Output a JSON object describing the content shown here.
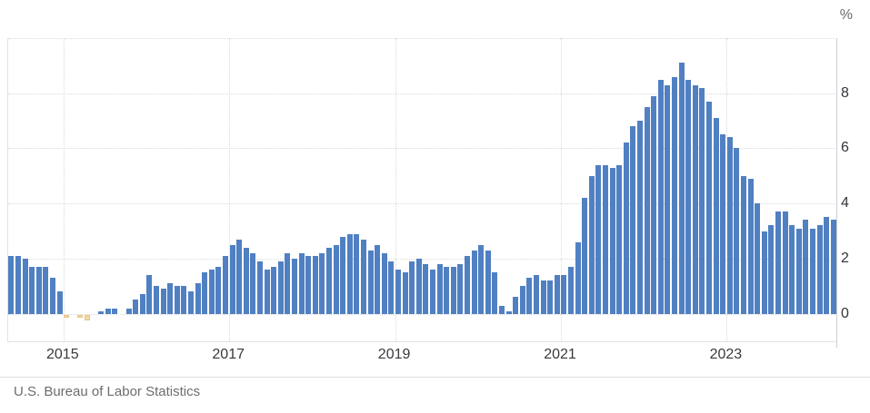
{
  "footer": {
    "source": "U.S. Bureau of Labor Statistics"
  },
  "chart_data": {
    "type": "bar",
    "title": "",
    "unit_label": "%",
    "x_start": "2014-05",
    "x_frequency": "monthly",
    "values": [
      2.1,
      2.1,
      2.0,
      1.7,
      1.7,
      1.7,
      1.3,
      0.8,
      -0.1,
      0.0,
      -0.1,
      -0.2,
      0.0,
      0.1,
      0.2,
      0.2,
      0.0,
      0.2,
      0.5,
      0.7,
      1.4,
      1.0,
      0.9,
      1.1,
      1.0,
      1.0,
      0.8,
      1.1,
      1.5,
      1.6,
      1.7,
      2.1,
      2.5,
      2.7,
      2.4,
      2.2,
      1.9,
      1.6,
      1.7,
      1.9,
      2.2,
      2.0,
      2.2,
      2.1,
      2.1,
      2.2,
      2.4,
      2.5,
      2.8,
      2.9,
      2.9,
      2.7,
      2.3,
      2.5,
      2.2,
      1.9,
      1.6,
      1.5,
      1.9,
      2.0,
      1.8,
      1.6,
      1.8,
      1.7,
      1.7,
      1.8,
      2.1,
      2.3,
      2.5,
      2.3,
      1.5,
      0.3,
      0.1,
      0.6,
      1.0,
      1.3,
      1.4,
      1.2,
      1.2,
      1.4,
      1.4,
      1.7,
      2.6,
      4.2,
      5.0,
      5.4,
      5.4,
      5.3,
      5.4,
      6.2,
      6.8,
      7.0,
      7.5,
      7.9,
      8.5,
      8.3,
      8.6,
      9.1,
      8.5,
      8.3,
      8.2,
      7.7,
      7.1,
      6.5,
      6.4,
      6.0,
      5.0,
      4.9,
      4.0,
      3.0,
      3.2,
      3.7,
      3.7,
      3.2,
      3.1,
      3.4,
      3.1,
      3.2,
      3.5,
      3.4
    ],
    "xticks": [
      {
        "label": "2015",
        "month_index": 8
      },
      {
        "label": "2017",
        "month_index": 32
      },
      {
        "label": "2019",
        "month_index": 56
      },
      {
        "label": "2021",
        "month_index": 80
      },
      {
        "label": "2023",
        "month_index": 104
      }
    ],
    "yticks": [
      0,
      2,
      4,
      6,
      8
    ],
    "ygrid": [
      0,
      2,
      4,
      6,
      8,
      10
    ],
    "ylim": [
      -1,
      10
    ],
    "grid": "dotted",
    "legend": "none",
    "colors": {
      "positive": "#5080c2",
      "negative": "#f2d8a2",
      "negative_border": "#e6c487"
    }
  }
}
